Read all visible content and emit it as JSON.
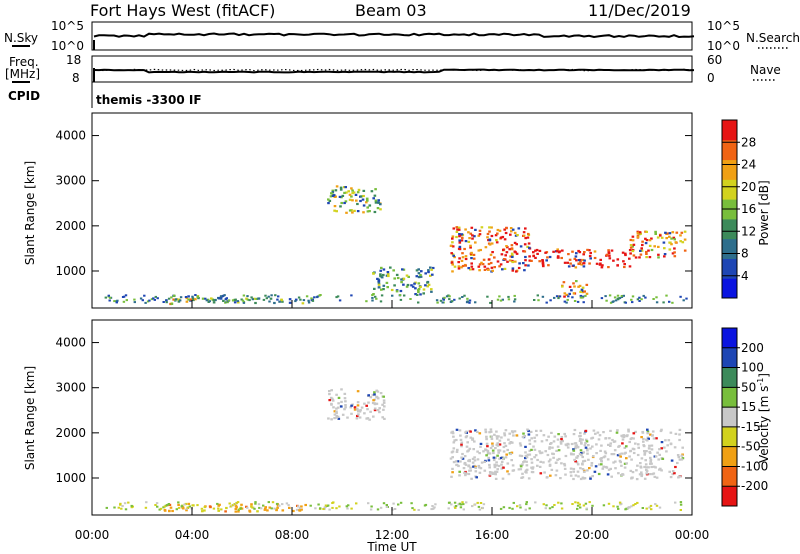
{
  "header": {
    "station": "Fort Hays West (fitACF)",
    "beam": "Beam 03",
    "date": "11/Dec/2019"
  },
  "nsky_panel": {
    "left_label": "N.Sky",
    "left_ticks": [
      "10^5",
      "10^0"
    ],
    "right_label": "N.Search",
    "right_ticks": [
      "10^5",
      "10^0"
    ]
  },
  "freq_panel": {
    "left_label_1": "Freq.",
    "left_label_2": "[MHz]",
    "left_ticks": [
      "18",
      "8"
    ],
    "right_label": "Nave",
    "right_ticks": [
      "60",
      "0"
    ]
  },
  "cpid": {
    "label": "CPID",
    "value": "themis -3300 IF"
  },
  "x_axis": {
    "label": "Time UT",
    "ticks": [
      "00:00",
      "04:00",
      "08:00",
      "12:00",
      "16:00",
      "20:00",
      "00:00"
    ]
  },
  "colors": {
    "power_scale": [
      "#0a14e0",
      "#1e46b4",
      "#2e6e8c",
      "#3c8a5a",
      "#78be3c",
      "#d2d21e",
      "#f0a014",
      "#f06414",
      "#e61414"
    ],
    "velocity_scale": [
      "#0a14e0",
      "#1e46b4",
      "#3c8a5a",
      "#78be3c",
      "#c8c8c8",
      "#d2d21e",
      "#f0a014",
      "#f06414",
      "#e61414"
    ],
    "gray": "#c8c8c8"
  },
  "chart_data": [
    {
      "type": "heatmap",
      "name": "power",
      "ylabel": "Slant Range [km]",
      "xlabel": "Time UT",
      "xlim": [
        0,
        24
      ],
      "ylim": [
        180,
        4500
      ],
      "yticks": [
        1000,
        2000,
        3000,
        4000
      ],
      "colorbar": {
        "label": "Power [dB]",
        "ticks": [
          4,
          8,
          12,
          16,
          20,
          24,
          28
        ],
        "range": [
          0,
          32
        ]
      },
      "regions": [
        {
          "t0": 3.0,
          "t1": 4.8,
          "r0": 280,
          "r1": 480,
          "level": 5
        },
        {
          "t0": 4.8,
          "t1": 8.5,
          "r0": 300,
          "r1": 420,
          "level": 3
        },
        {
          "t0": 9.4,
          "t1": 11.5,
          "r0": 2300,
          "r1": 2900,
          "level": 4
        },
        {
          "t0": 11.2,
          "t1": 13.6,
          "r0": 500,
          "r1": 1100,
          "level": 3
        },
        {
          "t0": 14.3,
          "t1": 17.5,
          "r0": 1000,
          "r1": 2000,
          "level": 7
        },
        {
          "t0": 17.5,
          "t1": 21.5,
          "r0": 1100,
          "r1": 1500,
          "level": 8
        },
        {
          "t0": 21.5,
          "t1": 23.7,
          "r0": 1300,
          "r1": 1900,
          "level": 6
        },
        {
          "t0": 18.6,
          "t1": 19.8,
          "r0": 450,
          "r1": 800,
          "level": 6
        }
      ]
    },
    {
      "type": "heatmap",
      "name": "velocity",
      "ylabel": "Slant Range [km]",
      "xlabel": "Time UT",
      "xlim": [
        0,
        24
      ],
      "ylim": [
        180,
        4500
      ],
      "yticks": [
        1000,
        2000,
        3000,
        4000
      ],
      "colorbar": {
        "label": "Velocity [m s-1]",
        "ticks": [
          200,
          100,
          50,
          15,
          -15,
          -50,
          -100,
          -200
        ]
      },
      "regions": [
        {
          "t0": 2.8,
          "t1": 8.5,
          "r0": 280,
          "r1": 450,
          "level": -50
        },
        {
          "t0": 9.4,
          "t1": 11.7,
          "r0": 2300,
          "r1": 3000,
          "level": 0
        },
        {
          "t0": 14.3,
          "t1": 23.6,
          "r0": 1000,
          "r1": 2100,
          "level": 0
        }
      ]
    }
  ]
}
